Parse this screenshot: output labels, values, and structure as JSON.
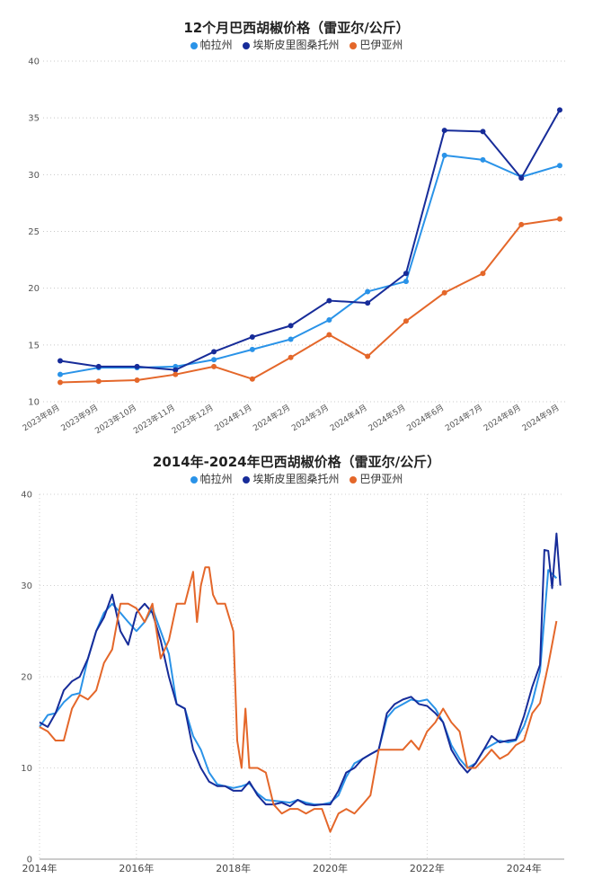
{
  "colors": {
    "para": "#2a93e8",
    "es": "#172c99",
    "bahia": "#e4672a"
  },
  "chart_data": [
    {
      "type": "line",
      "title": "12个月巴西胡椒价格（雷亚尔/公斤）",
      "categories": [
        "2023年8月",
        "2023年9月",
        "2023年10月",
        "2023年11月",
        "2023年12月",
        "2024年1月",
        "2024年2月",
        "2024年3月",
        "2024年4月",
        "2024年5月",
        "2024年6月",
        "2024年7月",
        "2024年8月",
        "2024年9月"
      ],
      "ylim": [
        10,
        40
      ],
      "yticks": [
        10,
        15,
        20,
        25,
        30,
        35,
        40
      ],
      "grid": true,
      "legend": "top",
      "series": [
        {
          "name": "帕拉州",
          "color": "#2a93e8",
          "values": [
            12.4,
            13.0,
            13.0,
            13.1,
            13.7,
            14.6,
            15.5,
            17.2,
            19.7,
            20.6,
            31.7,
            31.3,
            29.8,
            30.8
          ]
        },
        {
          "name": "埃斯皮里图桑托州",
          "color": "#172c99",
          "values": [
            13.6,
            13.1,
            13.1,
            12.8,
            14.4,
            15.7,
            16.7,
            18.9,
            18.7,
            21.3,
            33.9,
            33.8,
            29.7,
            35.7
          ]
        },
        {
          "name": "巴伊亚州",
          "color": "#e4672a",
          "values": [
            11.7,
            11.8,
            11.9,
            12.4,
            13.1,
            12.0,
            13.9,
            15.9,
            14.0,
            17.1,
            19.6,
            21.3,
            25.6,
            26.1
          ]
        }
      ]
    },
    {
      "type": "line",
      "title": "2014年-2024年巴西胡椒价格（雷亚尔/公斤）",
      "xticks": [
        "2014年",
        "2016年",
        "2018年",
        "2020年",
        "2022年",
        "2024年"
      ],
      "xlim": [
        2014.0,
        2024.83
      ],
      "ylim": [
        0,
        40
      ],
      "yticks": [
        0,
        10,
        20,
        30,
        40
      ],
      "grid": true,
      "legend": "top",
      "series": [
        {
          "name": "帕拉州",
          "color": "#2a93e8",
          "x": [
            2014.0,
            2014.17,
            2014.33,
            2014.5,
            2014.67,
            2014.83,
            2015.0,
            2015.17,
            2015.33,
            2015.5,
            2015.67,
            2015.83,
            2016.0,
            2016.17,
            2016.33,
            2016.5,
            2016.67,
            2016.83,
            2017.0,
            2017.17,
            2017.33,
            2017.5,
            2017.67,
            2017.83,
            2018.0,
            2018.17,
            2018.33,
            2018.5,
            2018.67,
            2018.83,
            2019.0,
            2019.17,
            2019.33,
            2019.5,
            2019.67,
            2019.83,
            2020.0,
            2020.17,
            2020.33,
            2020.5,
            2020.67,
            2020.83,
            2021.0,
            2021.17,
            2021.33,
            2021.5,
            2021.67,
            2021.83,
            2022.0,
            2022.17,
            2022.33,
            2022.5,
            2022.67,
            2022.83,
            2023.0,
            2023.17,
            2023.33,
            2023.5,
            2023.67,
            2023.83,
            2024.0,
            2024.17,
            2024.33,
            2024.5,
            2024.67
          ],
          "y": [
            14.5,
            15.8,
            16.0,
            17.2,
            18.0,
            18.2,
            22.0,
            25.0,
            27.0,
            28.0,
            27.0,
            26.0,
            25.0,
            26.0,
            27.5,
            25.0,
            22.5,
            17.0,
            16.5,
            13.5,
            12.0,
            9.5,
            8.2,
            8.0,
            7.8,
            8.0,
            8.3,
            7.2,
            6.5,
            6.4,
            6.3,
            6.2,
            6.5,
            6.2,
            6.0,
            6.0,
            6.2,
            7.0,
            9.0,
            10.5,
            11.0,
            11.5,
            12.0,
            15.5,
            16.5,
            17.0,
            17.5,
            17.3,
            17.5,
            16.5,
            15.0,
            12.5,
            11.0,
            10.0,
            10.5,
            12.0,
            12.5,
            13.0,
            12.8,
            13.0,
            14.6,
            17.2,
            20.6,
            31.7,
            30.8
          ]
        },
        {
          "name": "埃斯皮里图桑托州",
          "color": "#172c99",
          "x": [
            2014.0,
            2014.17,
            2014.33,
            2014.5,
            2014.67,
            2014.83,
            2015.0,
            2015.17,
            2015.33,
            2015.5,
            2015.67,
            2015.83,
            2016.0,
            2016.17,
            2016.33,
            2016.5,
            2016.67,
            2016.83,
            2017.0,
            2017.17,
            2017.33,
            2017.5,
            2017.67,
            2017.83,
            2018.0,
            2018.17,
            2018.33,
            2018.5,
            2018.67,
            2018.83,
            2019.0,
            2019.17,
            2019.33,
            2019.5,
            2019.67,
            2019.83,
            2020.0,
            2020.17,
            2020.33,
            2020.5,
            2020.67,
            2020.83,
            2021.0,
            2021.17,
            2021.33,
            2021.5,
            2021.67,
            2021.83,
            2022.0,
            2022.17,
            2022.33,
            2022.5,
            2022.67,
            2022.83,
            2023.0,
            2023.17,
            2023.33,
            2023.5,
            2023.67,
            2023.83,
            2024.0,
            2024.17,
            2024.33,
            2024.42,
            2024.5,
            2024.58,
            2024.67,
            2024.75
          ],
          "y": [
            15.0,
            14.5,
            16.0,
            18.5,
            19.5,
            20.0,
            22.0,
            25.0,
            26.5,
            29.0,
            25.0,
            23.5,
            27.0,
            28.0,
            27.0,
            24.0,
            20.0,
            17.0,
            16.5,
            12.0,
            10.0,
            8.5,
            8.0,
            8.0,
            7.5,
            7.5,
            8.5,
            7.0,
            6.0,
            6.0,
            6.2,
            5.8,
            6.5,
            6.0,
            5.9,
            6.0,
            6.0,
            7.5,
            9.5,
            10.0,
            11.0,
            11.5,
            12.0,
            16.0,
            17.0,
            17.5,
            17.8,
            17.0,
            16.8,
            16.0,
            15.0,
            12.0,
            10.5,
            9.5,
            10.5,
            12.0,
            13.5,
            12.8,
            13.0,
            13.1,
            15.7,
            18.9,
            21.3,
            33.9,
            33.8,
            29.7,
            35.7,
            30.0
          ]
        },
        {
          "name": "巴伊亚州",
          "color": "#e4672a",
          "x": [
            2014.0,
            2014.17,
            2014.33,
            2014.5,
            2014.67,
            2014.83,
            2015.0,
            2015.17,
            2015.33,
            2015.5,
            2015.67,
            2015.83,
            2016.0,
            2016.17,
            2016.33,
            2016.5,
            2016.67,
            2016.83,
            2017.0,
            2017.17,
            2017.25,
            2017.33,
            2017.42,
            2017.5,
            2017.58,
            2017.67,
            2017.83,
            2018.0,
            2018.08,
            2018.17,
            2018.25,
            2018.33,
            2018.5,
            2018.67,
            2018.83,
            2019.0,
            2019.17,
            2019.33,
            2019.5,
            2019.67,
            2019.83,
            2020.0,
            2020.17,
            2020.33,
            2020.5,
            2020.67,
            2020.83,
            2021.0,
            2021.17,
            2021.33,
            2021.5,
            2021.67,
            2021.83,
            2022.0,
            2022.17,
            2022.33,
            2022.5,
            2022.67,
            2022.83,
            2023.0,
            2023.17,
            2023.33,
            2023.5,
            2023.67,
            2023.83,
            2024.0,
            2024.17,
            2024.33,
            2024.5,
            2024.67
          ],
          "y": [
            14.5,
            14.0,
            13.0,
            13.0,
            16.5,
            18.0,
            17.5,
            18.5,
            21.5,
            23.0,
            28.0,
            28.0,
            27.5,
            26.0,
            28.0,
            22.0,
            24.0,
            28.0,
            28.0,
            31.5,
            26.0,
            30.0,
            32.0,
            32.0,
            29.0,
            28.0,
            28.0,
            25.0,
            13.0,
            10.0,
            16.5,
            10.0,
            10.0,
            9.5,
            6.0,
            5.0,
            5.5,
            5.5,
            5.0,
            5.5,
            5.5,
            3.0,
            5.0,
            5.5,
            5.0,
            6.0,
            7.0,
            12.0,
            12.0,
            12.0,
            12.0,
            13.0,
            12.0,
            14.0,
            15.0,
            16.5,
            15.0,
            14.0,
            10.0,
            10.0,
            11.0,
            12.0,
            11.0,
            11.5,
            12.5,
            13.0,
            16.0,
            17.1,
            21.3,
            26.1
          ]
        }
      ]
    }
  ]
}
